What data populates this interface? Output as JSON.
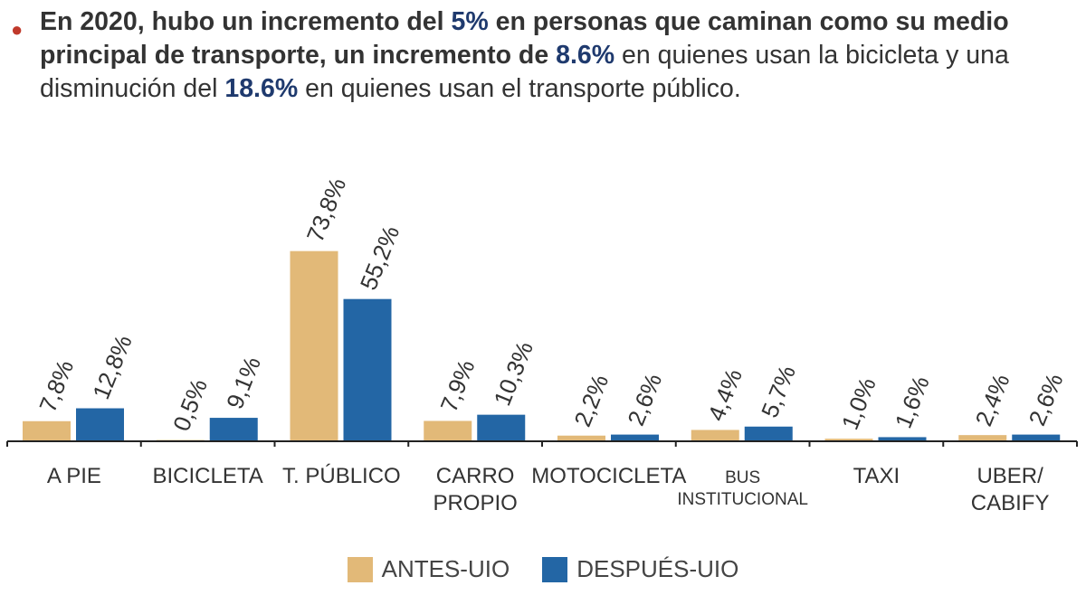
{
  "headline": {
    "bold_1": "En 2020, hubo un incremento del ",
    "hl_1": "5%",
    "bold_2": " en personas que caminan como su medio principal de transporte, un incremento de ",
    "hl_2": "8.6%",
    "normal_1": " en quienes usan la bicicleta y una disminución del ",
    "hl_3": "18.6%",
    "normal_2": " en quienes usan el transporte público."
  },
  "colors": {
    "antes": "#e2b978",
    "despues": "#2366a5",
    "highlight": "#1f3a6e",
    "bullet": "#c0392b",
    "axis": "#222222"
  },
  "chart_data": {
    "type": "bar",
    "title": "",
    "xlabel": "",
    "ylabel": "",
    "ylim": [
      0,
      80
    ],
    "grid": false,
    "legend_position": "bottom-center",
    "categories": [
      [
        "A PIE"
      ],
      [
        "BICICLETA"
      ],
      [
        "T. PÚBLICO"
      ],
      [
        "CARRO",
        "PROPIO"
      ],
      [
        "MOTOCICLETA"
      ],
      [
        "BUS",
        "INSTITUCIONAL"
      ],
      [
        "TAXI"
      ],
      [
        "UBER/",
        "CABIFY"
      ]
    ],
    "series": [
      {
        "name": "ANTES-UIO",
        "values": [
          7.8,
          0.5,
          73.8,
          7.9,
          2.2,
          4.4,
          1.0,
          2.4
        ],
        "labels": [
          "7,8%",
          "0,5%",
          "73,8%",
          "7,9%",
          "2,2%",
          "4,4%",
          "1,0%",
          "2,4%"
        ]
      },
      {
        "name": "DESPUÉS-UIO",
        "values": [
          12.8,
          9.1,
          55.2,
          10.3,
          2.6,
          5.7,
          1.6,
          2.6
        ],
        "labels": [
          "12,8%",
          "9,1%",
          "55,2%",
          "10,3%",
          "2,6%",
          "5,7%",
          "1,6%",
          "2,6%"
        ]
      }
    ]
  }
}
